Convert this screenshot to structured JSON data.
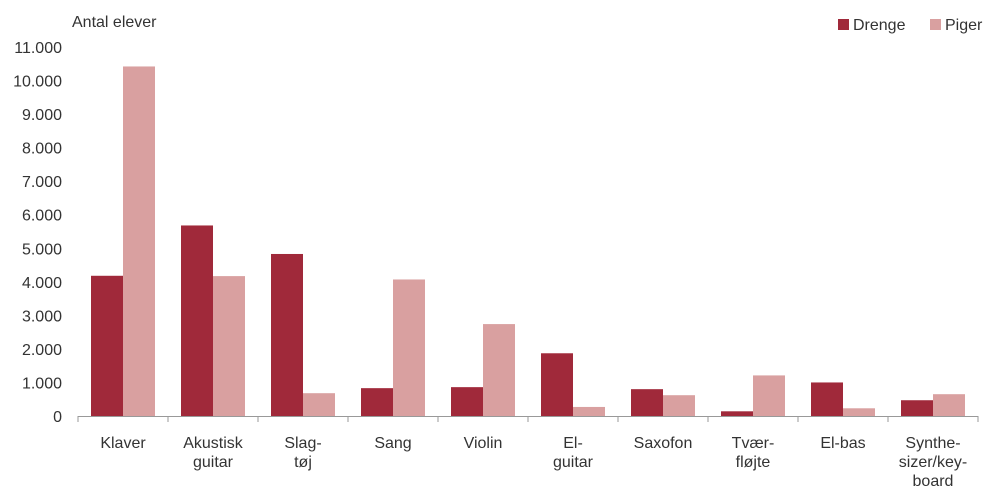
{
  "chart_data": {
    "type": "bar",
    "ylabel": "Antal elever",
    "ylim": [
      0,
      11000
    ],
    "yticks": [
      0,
      1000,
      2000,
      3000,
      4000,
      5000,
      6000,
      7000,
      8000,
      9000,
      10000,
      11000
    ],
    "ytick_labels": [
      "0",
      "1.000",
      "2.000",
      "3.000",
      "4.000",
      "5.000",
      "6.000",
      "7.000",
      "8.000",
      "9.000",
      "10.000",
      "11.000"
    ],
    "categories": [
      [
        "Klaver"
      ],
      [
        "Akustisk",
        "guitar"
      ],
      [
        "Slag-",
        "tøj"
      ],
      [
        "Sang"
      ],
      [
        "Violin"
      ],
      [
        "El-",
        "guitar"
      ],
      [
        "Saxofon"
      ],
      [
        "Tvær-",
        "fløjte"
      ],
      [
        "El-bas"
      ],
      [
        "Synthe-",
        "sizer/key-",
        "board"
      ]
    ],
    "series": [
      {
        "name": "Drenge",
        "color": "#a0293a",
        "values": [
          4180,
          5680,
          4830,
          830,
          860,
          1870,
          800,
          140,
          1000,
          470
        ]
      },
      {
        "name": "Piger",
        "color": "#d9a0a0",
        "values": [
          10420,
          4170,
          680,
          4070,
          2740,
          270,
          620,
          1210,
          230,
          650
        ]
      }
    ],
    "legend_position": "top-right",
    "grid": false
  }
}
